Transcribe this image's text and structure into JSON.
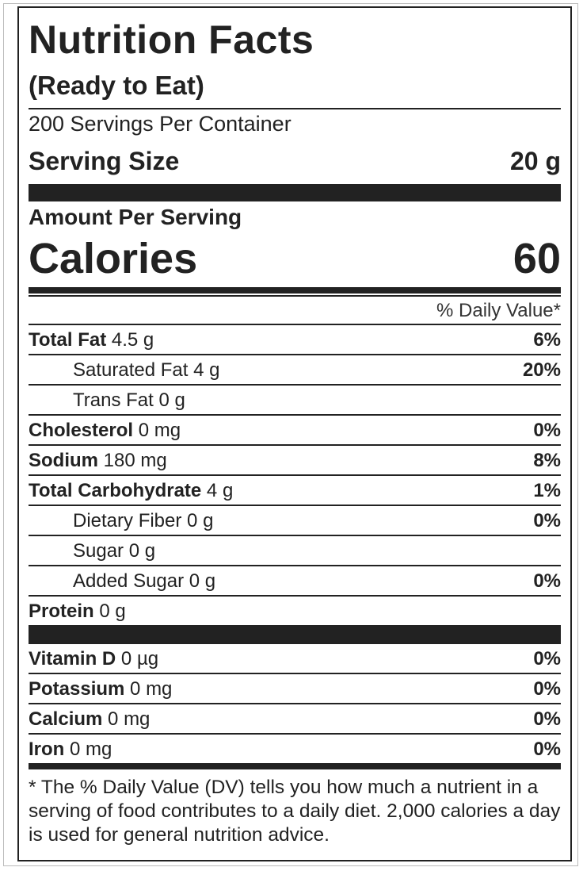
{
  "title": "Nutrition Facts",
  "subtitle": "(Ready to Eat)",
  "servings": "200 Servings Per Container",
  "serving_size": {
    "label": "Serving Size",
    "value": "20 g"
  },
  "amount_per_serving": "Amount Per Serving",
  "calories": {
    "label": "Calories",
    "value": "60"
  },
  "dv_header": "% Daily Value*",
  "nutrients": [
    {
      "name": "Total Fat",
      "amount": "4.5 g",
      "dv": "6%"
    },
    {
      "name": "Saturated Fat",
      "amount": "4 g",
      "dv": "20%"
    },
    {
      "name": "Trans Fat",
      "amount": "0 g"
    },
    {
      "name": "Cholesterol",
      "amount": "0 mg",
      "dv": "0%"
    },
    {
      "name": "Sodium",
      "amount": "180 mg",
      "dv": "8%"
    },
    {
      "name": "Total Carbohydrate",
      "amount": "4 g",
      "dv": "1%"
    },
    {
      "name": "Dietary Fiber",
      "amount": "0 g",
      "dv": "0%"
    },
    {
      "name": "Sugar",
      "amount": "0 g"
    },
    {
      "name": "Added Sugar",
      "amount": "0 g",
      "dv": "0%"
    },
    {
      "name": "Protein",
      "amount": "0 g"
    }
  ],
  "vitamins": [
    {
      "name": "Vitamin D",
      "amount": "0 µg",
      "dv": "0%"
    },
    {
      "name": "Potassium",
      "amount": "0 mg",
      "dv": "0%"
    },
    {
      "name": "Calcium",
      "amount": "0 mg",
      "dv": "0%"
    },
    {
      "name": "Iron",
      "amount": "0 mg",
      "dv": "0%"
    }
  ],
  "footnote": "* The % Daily Value (DV) tells you how much a nutrient in a serving of food contributes to a daily diet. 2,000 calories a day is used for general nutrition advice."
}
